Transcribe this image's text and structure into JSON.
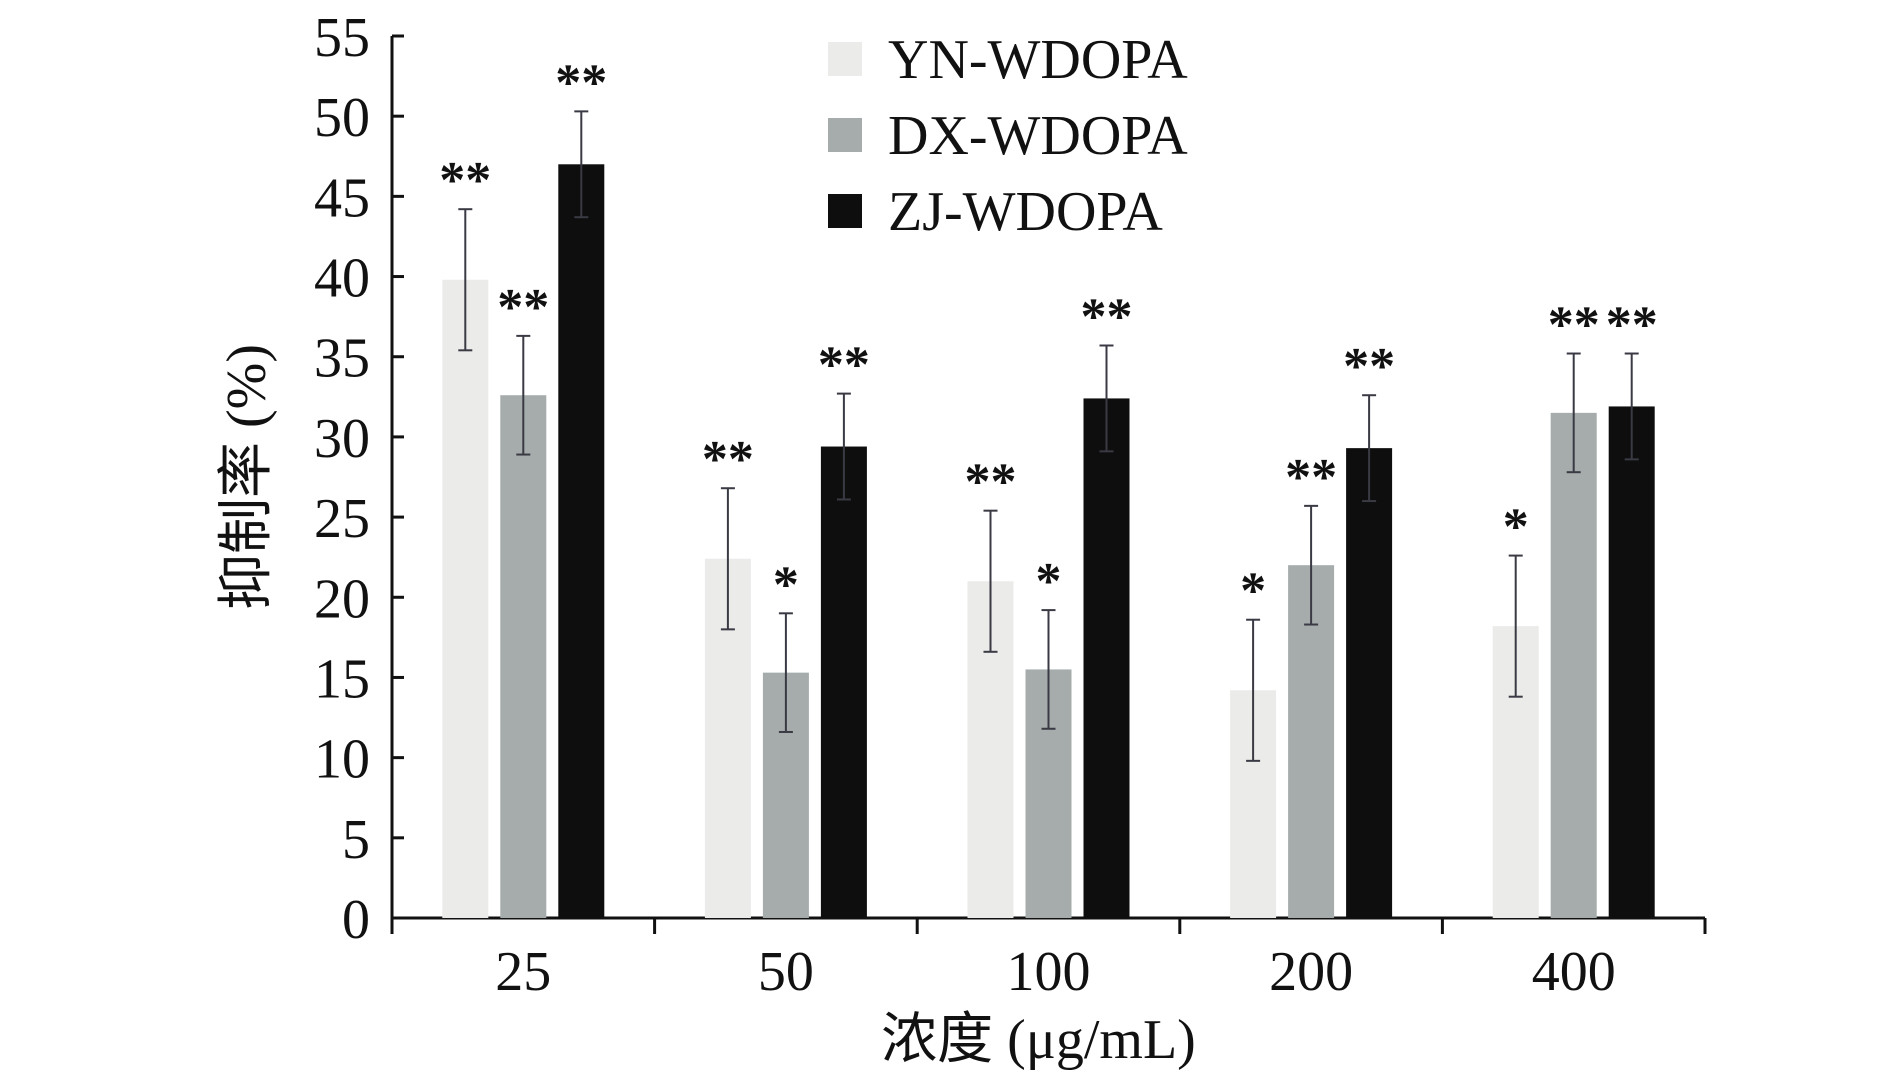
{
  "chart_data": {
    "type": "bar",
    "categories": [
      "25",
      "50",
      "100",
      "200",
      "400"
    ],
    "series": [
      {
        "name": "YN-WDOPA",
        "color": "#ebebe9",
        "values": [
          39.8,
          22.4,
          21.0,
          14.2,
          18.2
        ],
        "errors": [
          4.4,
          4.4,
          4.4,
          4.4,
          4.4
        ],
        "significance": [
          "**",
          "**",
          "**",
          "*",
          "*"
        ]
      },
      {
        "name": "DX-WDOPA",
        "color": "#a5acab",
        "values": [
          32.6,
          15.3,
          15.5,
          22.0,
          31.5
        ],
        "errors": [
          3.7,
          3.7,
          3.7,
          3.7,
          3.7
        ],
        "significance": [
          "**",
          "*",
          "*",
          "**",
          "**"
        ]
      },
      {
        "name": "ZJ-WDOPA",
        "color": "#0d0e0d",
        "values": [
          47.0,
          29.4,
          32.4,
          29.3,
          31.9
        ],
        "errors": [
          3.3,
          3.3,
          3.3,
          3.3,
          3.3
        ],
        "significance": [
          "**",
          "**",
          "**",
          "**",
          "**"
        ]
      }
    ],
    "xlabel": "浓度 (μg/mL)",
    "ylabel": "抑制率 (%)",
    "ylim": [
      0,
      55
    ],
    "yticks": [
      0,
      5,
      10,
      15,
      20,
      25,
      30,
      35,
      40,
      45,
      50,
      55
    ],
    "grid": false,
    "legend_position": "top-center"
  }
}
